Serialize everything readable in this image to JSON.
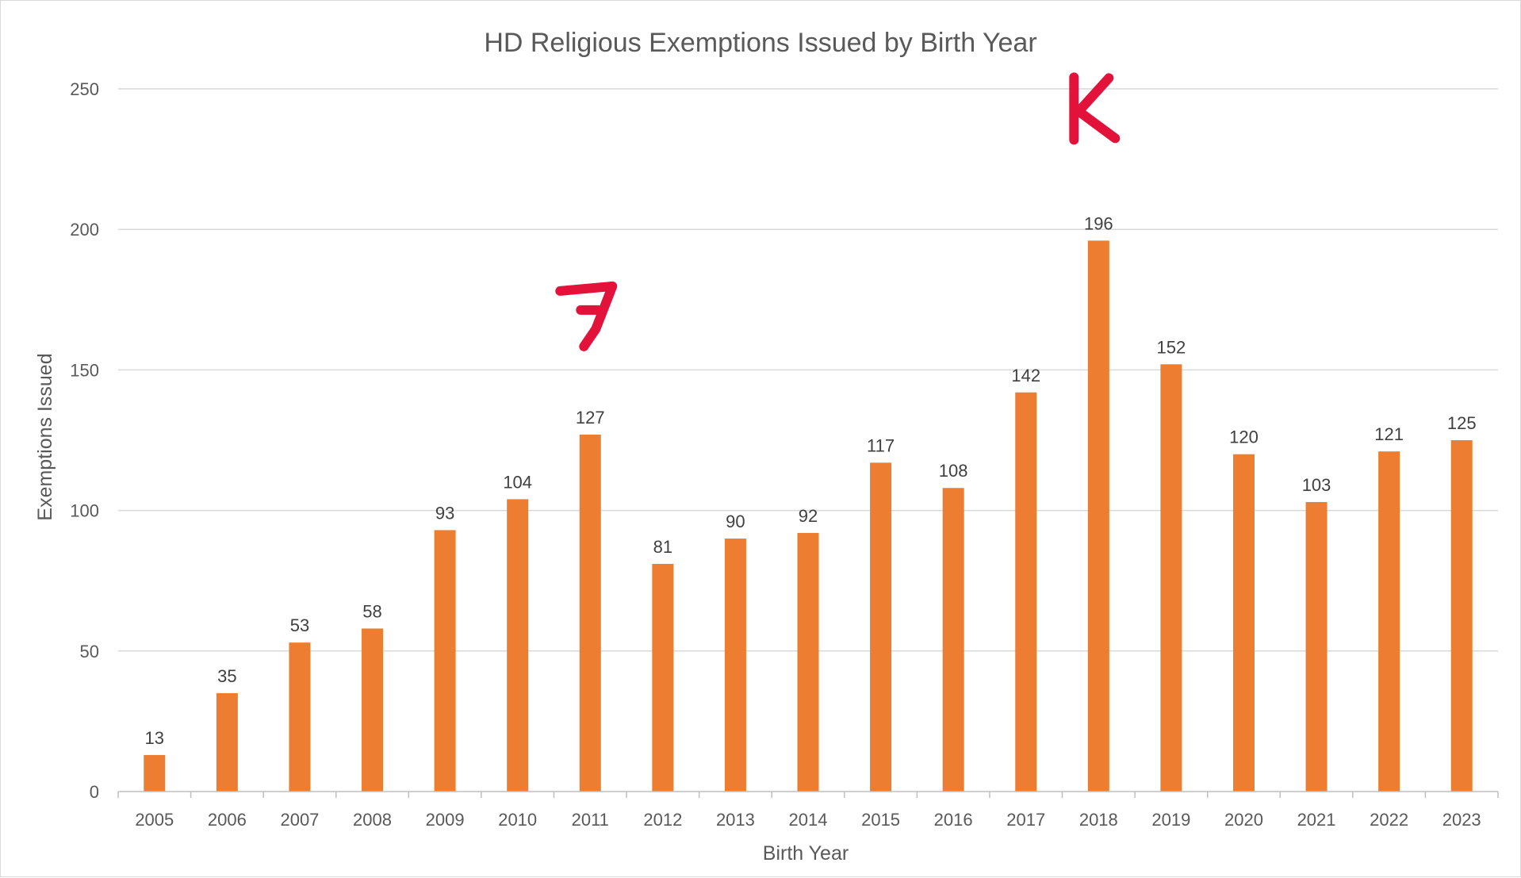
{
  "chart_data": {
    "type": "bar",
    "title": "HD Religious Exemptions Issued by Birth Year",
    "xlabel": "Birth Year",
    "ylabel": "Exemptions Issued",
    "categories": [
      "2005",
      "2006",
      "2007",
      "2008",
      "2009",
      "2010",
      "2011",
      "2012",
      "2013",
      "2014",
      "2015",
      "2016",
      "2017",
      "2018",
      "2019",
      "2020",
      "2021",
      "2022",
      "2023"
    ],
    "values": [
      13,
      35,
      53,
      58,
      93,
      104,
      127,
      81,
      90,
      92,
      117,
      108,
      142,
      196,
      152,
      120,
      103,
      121,
      125
    ],
    "ylim": [
      0,
      250
    ],
    "yticks": [
      0,
      50,
      100,
      150,
      200,
      250
    ],
    "grid": true,
    "legend": "none",
    "data_labels": true,
    "bar_color": "#ed7d31",
    "annotations": [
      {
        "text": "7",
        "category": "2011",
        "color": "#e3123b",
        "style": "handwritten"
      },
      {
        "text": "K",
        "category": "2018",
        "color": "#e3123b",
        "style": "handwritten"
      }
    ]
  }
}
